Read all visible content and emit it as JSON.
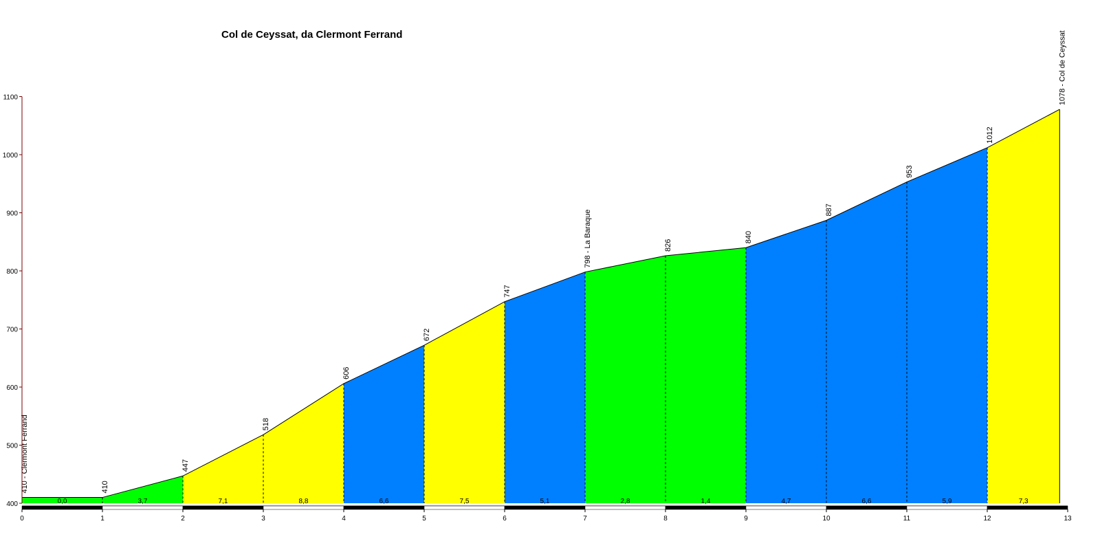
{
  "chart_data": {
    "type": "area",
    "title": "Col de Ceyssat, da Clermont Ferrand",
    "xlabel": "",
    "ylabel": "",
    "xlim": [
      0,
      13
    ],
    "ylim": [
      400,
      1100
    ],
    "x_ticks": [
      "0",
      "1",
      "2",
      "3",
      "4",
      "5",
      "6",
      "7",
      "8",
      "9",
      "10",
      "11",
      "12",
      "13"
    ],
    "y_ticks": [
      "400",
      "500",
      "600",
      "700",
      "800",
      "900",
      "1000",
      "1100"
    ],
    "x": [
      0,
      1,
      2,
      3,
      4,
      5,
      6,
      7,
      8,
      9,
      10,
      11,
      12,
      12.9
    ],
    "altitudes": [
      410,
      410,
      447,
      518,
      606,
      672,
      747,
      798,
      826,
      840,
      887,
      953,
      1012,
      1078
    ],
    "point_labels": [
      "410 - Clermont Ferrand",
      "410",
      "447",
      "518",
      "606",
      "672",
      "747",
      "798 - La Baraque",
      "826",
      "840",
      "887",
      "953",
      "1012",
      "1078 - Col de Ceyssat"
    ],
    "segments": [
      {
        "from": 0,
        "to": 1,
        "grade": "0,0",
        "color": "#00ff00"
      },
      {
        "from": 1,
        "to": 2,
        "grade": "3,7",
        "color": "#00ff00"
      },
      {
        "from": 2,
        "to": 3,
        "grade": "7,1",
        "color": "#ffff00"
      },
      {
        "from": 3,
        "to": 4,
        "grade": "8,8",
        "color": "#ffff00"
      },
      {
        "from": 4,
        "to": 5,
        "grade": "6,6",
        "color": "#0080ff"
      },
      {
        "from": 5,
        "to": 6,
        "grade": "7,5",
        "color": "#ffff00"
      },
      {
        "from": 6,
        "to": 7,
        "grade": "5,1",
        "color": "#0080ff"
      },
      {
        "from": 7,
        "to": 8,
        "grade": "2,8",
        "color": "#00ff00"
      },
      {
        "from": 8,
        "to": 9,
        "grade": "1,4",
        "color": "#00ff00"
      },
      {
        "from": 9,
        "to": 10,
        "grade": "4,7",
        "color": "#0080ff"
      },
      {
        "from": 10,
        "to": 11,
        "grade": "6,6",
        "color": "#0080ff"
      },
      {
        "from": 11,
        "to": 12,
        "grade": "5,9",
        "color": "#0080ff"
      },
      {
        "from": 12,
        "to": 12.9,
        "grade": "7,3",
        "color": "#ffff00"
      }
    ],
    "grid": false,
    "legend": "none"
  }
}
